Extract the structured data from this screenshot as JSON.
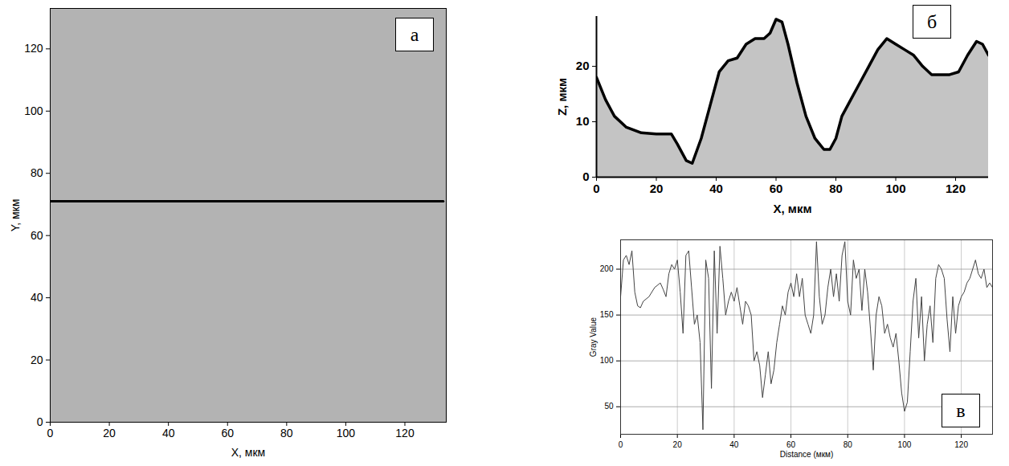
{
  "chart_data": [
    {
      "type": "line",
      "title": "а",
      "x_label": "X, мкм",
      "y_label": "Y, мкм",
      "xlim": [
        0,
        134
      ],
      "ylim": [
        0,
        133
      ],
      "xticks": [
        0,
        20,
        40,
        60,
        80,
        100,
        120
      ],
      "yticks": [
        0,
        20,
        40,
        60,
        80,
        100,
        120
      ],
      "x": [
        0,
        133
      ],
      "values": [
        71,
        71
      ],
      "color": "#000000"
    },
    {
      "type": "area",
      "title": "б",
      "x_label": "X, мкм",
      "y_label": "Z, мкм",
      "xlim": [
        0,
        131
      ],
      "ylim": [
        0,
        29
      ],
      "xticks": [
        0,
        20,
        40,
        60,
        80,
        100,
        120
      ],
      "yticks": [
        0,
        10,
        20
      ],
      "x": [
        0,
        3,
        6,
        10,
        15,
        20,
        25,
        27,
        30,
        32,
        35,
        38,
        41,
        44,
        47,
        50,
        53,
        56,
        58,
        60,
        62,
        64,
        67,
        70,
        73,
        76,
        78,
        80,
        82,
        85,
        88,
        91,
        94,
        97,
        100,
        103,
        106,
        109,
        112,
        115,
        118,
        121,
        124,
        127,
        129,
        131
      ],
      "values": [
        18,
        14,
        11,
        9,
        8,
        7.8,
        7.8,
        6,
        3,
        2.5,
        7,
        13,
        19,
        21,
        21.5,
        24,
        25,
        25,
        26,
        28.5,
        28,
        24,
        17,
        11,
        7,
        5,
        5,
        7,
        11,
        14,
        17,
        20,
        23,
        25,
        24,
        23,
        22,
        20,
        18.5,
        18.5,
        18.5,
        19,
        22,
        24.5,
        24,
        22
      ],
      "color": "#000000"
    },
    {
      "type": "line",
      "title": "в",
      "x_label": "Distance (мкм)",
      "y_label": "Gray Value",
      "xlim": [
        0,
        131
      ],
      "ylim": [
        20,
        232
      ],
      "xticks": [
        0,
        20,
        40,
        60,
        80,
        100,
        120
      ],
      "yticks": [
        50,
        100,
        150,
        200
      ],
      "grid": true,
      "x": [
        0,
        1,
        2,
        3,
        4,
        5,
        6,
        7,
        8,
        10,
        12,
        14,
        15,
        16,
        17,
        18,
        19,
        20,
        21,
        22,
        23,
        24,
        25,
        26,
        27,
        28,
        29,
        30,
        31,
        32,
        33,
        34,
        35,
        36,
        37,
        38,
        39,
        40,
        41,
        42,
        43,
        44,
        45,
        46,
        47,
        48,
        49,
        50,
        51,
        52,
        53,
        54,
        55,
        56,
        57,
        58,
        59,
        60,
        61,
        62,
        63,
        64,
        65,
        66,
        67,
        68,
        69,
        70,
        71,
        72,
        73,
        74,
        75,
        76,
        77,
        78,
        79,
        80,
        81,
        82,
        83,
        84,
        85,
        86,
        87,
        88,
        89,
        90,
        91,
        92,
        93,
        94,
        95,
        96,
        97,
        98,
        99,
        100,
        101,
        102,
        103,
        104,
        105,
        106,
        107,
        108,
        109,
        110,
        111,
        112,
        113,
        114,
        115,
        116,
        117,
        118,
        119,
        120,
        121,
        122,
        123,
        124,
        125,
        126,
        127,
        128,
        129,
        130,
        131
      ],
      "values": [
        170,
        210,
        215,
        205,
        220,
        175,
        160,
        158,
        165,
        170,
        180,
        185,
        178,
        170,
        195,
        205,
        200,
        210,
        175,
        130,
        215,
        220,
        180,
        140,
        150,
        120,
        25,
        210,
        190,
        70,
        220,
        130,
        225,
        190,
        150,
        165,
        175,
        165,
        180,
        160,
        140,
        165,
        160,
        150,
        100,
        110,
        95,
        60,
        85,
        110,
        75,
        90,
        120,
        140,
        160,
        150,
        175,
        185,
        170,
        195,
        170,
        190,
        150,
        140,
        130,
        150,
        230,
        170,
        140,
        150,
        180,
        200,
        170,
        195,
        165,
        215,
        230,
        165,
        150,
        210,
        190,
        200,
        155,
        200,
        175,
        135,
        90,
        150,
        170,
        160,
        130,
        140,
        125,
        115,
        130,
        100,
        65,
        45,
        55,
        110,
        165,
        190,
        125,
        170,
        100,
        140,
        160,
        120,
        190,
        205,
        200,
        190,
        145,
        110,
        170,
        130,
        160,
        170,
        175,
        185,
        190,
        200,
        210,
        195,
        190,
        200,
        180,
        185,
        180
      ],
      "color": "#444444"
    }
  ]
}
